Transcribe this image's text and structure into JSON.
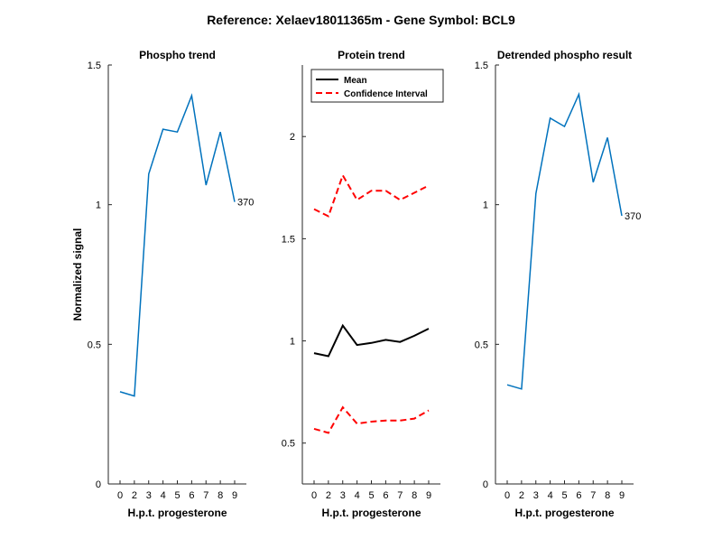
{
  "figure": {
    "title": "Reference:  Xelaev18011365m - Gene Symbol:  BCL9"
  },
  "colors": {
    "phospho": "#0072BD",
    "mean": "#000000",
    "ci": "#FF0000",
    "axis": "#262626"
  },
  "chart_data": [
    {
      "type": "line",
      "title": "Phospho trend",
      "xlabel": "H.p.t. progesterone",
      "ylabel": "Normalized signal",
      "categories": [
        "0",
        "2",
        "3",
        "4",
        "5",
        "6",
        "7",
        "8",
        "9"
      ],
      "ylim": [
        0,
        1.5
      ],
      "yticks": [
        "0",
        "0.5",
        "1",
        "1.5"
      ],
      "series": [
        {
          "values": [
            0.33,
            0.315,
            1.11,
            1.27,
            1.26,
            1.39,
            1.07,
            1.26,
            1.01
          ]
        }
      ],
      "annotation": "370",
      "grid": false
    },
    {
      "type": "line",
      "title": "Protein trend",
      "xlabel": "H.p.t. progesterone",
      "ylabel": "",
      "categories": [
        "0",
        "2",
        "3",
        "4",
        "5",
        "6",
        "7",
        "8",
        "9"
      ],
      "ylim": [
        0.3,
        2.35
      ],
      "yticks": [
        "0.5",
        "1",
        "1.5",
        "2"
      ],
      "legend": "top-left",
      "series": [
        {
          "name": "Mean",
          "values": [
            0.94,
            0.925,
            1.075,
            0.98,
            0.99,
            1.005,
            0.995,
            1.025,
            1.06
          ]
        },
        {
          "name": "Confidence Interval",
          "values": [
            1.645,
            1.61,
            1.81,
            1.69,
            1.735,
            1.735,
            1.69,
            1.725,
            1.76
          ]
        },
        {
          "values": [
            0.57,
            0.55,
            0.675,
            0.595,
            0.605,
            0.61,
            0.61,
            0.62,
            0.66
          ]
        }
      ],
      "grid": false
    },
    {
      "type": "line",
      "title": "Detrended phospho result",
      "xlabel": "H.p.t. progesterone",
      "ylabel": "",
      "categories": [
        "0",
        "2",
        "3",
        "4",
        "5",
        "6",
        "7",
        "8",
        "9"
      ],
      "ylim": [
        0,
        1.5
      ],
      "yticks": [
        "0",
        "0.5",
        "1",
        "1.5"
      ],
      "series": [
        {
          "values": [
            0.355,
            0.34,
            1.04,
            1.31,
            1.28,
            1.395,
            1.08,
            1.24,
            0.96
          ]
        }
      ],
      "annotation": "370",
      "grid": false
    }
  ]
}
